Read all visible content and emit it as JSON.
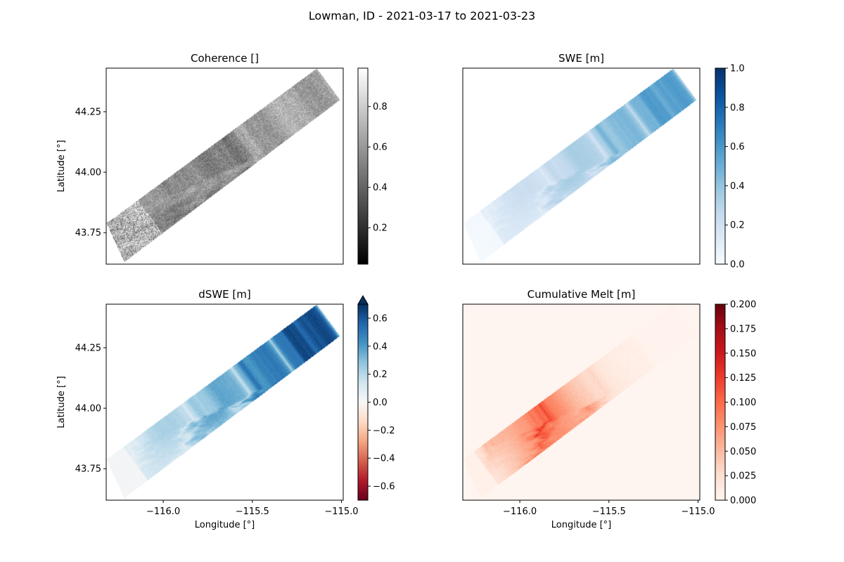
{
  "figure": {
    "suptitle": "Lowman, ID - 2021-03-17 to 2021-03-23"
  },
  "chart_data": [
    {
      "type": "heatmap",
      "title": "Coherence []",
      "xlabel": "",
      "ylabel": "Latitude [°]",
      "xlim": [
        -116.32,
        -114.99
      ],
      "ylim": [
        43.62,
        44.43
      ],
      "xticks": [],
      "xtick_labels": [],
      "yticks": [
        43.75,
        44.0,
        44.25
      ],
      "ytick_labels": [
        "43.75",
        "44.00",
        "44.25"
      ],
      "colormap": "gray",
      "colorbar": {
        "vmin": 0.02,
        "vmax": 0.99,
        "ticks": [
          0.2,
          0.4,
          0.6,
          0.8
        ],
        "tick_labels": [
          "0.2",
          "0.4",
          "0.6",
          "0.8"
        ],
        "extend": "neither"
      },
      "swath": {
        "corners_lonlat": [
          [
            -116.22,
            43.63
          ],
          [
            -116.32,
            43.79
          ],
          [
            -115.14,
            44.43
          ],
          [
            -115.01,
            44.3
          ]
        ]
      },
      "fill_outside_swath": null,
      "grid": false
    },
    {
      "type": "heatmap",
      "title": "SWE [m]",
      "xlabel": "",
      "ylabel": "",
      "xlim": [
        -116.32,
        -114.99
      ],
      "ylim": [
        43.62,
        44.43
      ],
      "xticks": [],
      "xtick_labels": [],
      "yticks": [],
      "ytick_labels": [],
      "colormap": "Blues",
      "colorbar": {
        "vmin": 0.0,
        "vmax": 1.0,
        "ticks": [
          0.0,
          0.2,
          0.4,
          0.6,
          0.8,
          1.0
        ],
        "tick_labels": [
          "0.0",
          "0.2",
          "0.4",
          "0.6",
          "0.8",
          "1.0"
        ],
        "extend": "neither"
      },
      "swath": {
        "corners_lonlat": [
          [
            -116.22,
            43.63
          ],
          [
            -116.32,
            43.79
          ],
          [
            -115.14,
            44.43
          ],
          [
            -115.01,
            44.3
          ]
        ]
      },
      "fill_outside_swath": null,
      "grid": false
    },
    {
      "type": "heatmap",
      "title": "dSWE [m]",
      "xlabel": "Longitude [°]",
      "ylabel": "Latitude [°]",
      "xlim": [
        -116.32,
        -114.99
      ],
      "ylim": [
        43.62,
        44.43
      ],
      "xticks": [
        -116.0,
        -115.5,
        -115.0
      ],
      "xtick_labels": [
        "−116.0",
        "−115.5",
        "−115.0"
      ],
      "yticks": [
        43.75,
        44.0,
        44.25
      ],
      "ytick_labels": [
        "43.75",
        "44.00",
        "44.25"
      ],
      "colormap": "RdBu",
      "colorbar": {
        "vmin": -0.7,
        "vmax": 0.7,
        "ticks": [
          -0.6,
          -0.4,
          -0.2,
          0.0,
          0.2,
          0.4,
          0.6
        ],
        "tick_labels": [
          "−0.6",
          "−0.4",
          "−0.2",
          "0.0",
          "0.2",
          "0.4",
          "0.6"
        ],
        "extend": "max"
      },
      "swath": {
        "corners_lonlat": [
          [
            -116.22,
            43.63
          ],
          [
            -116.32,
            43.79
          ],
          [
            -115.14,
            44.43
          ],
          [
            -115.01,
            44.3
          ]
        ]
      },
      "fill_outside_swath": null,
      "grid": false
    },
    {
      "type": "heatmap",
      "title": "Cumulative Melt [m]",
      "xlabel": "Longitude [°]",
      "ylabel": "",
      "xlim": [
        -116.32,
        -114.99
      ],
      "ylim": [
        43.62,
        44.43
      ],
      "xticks": [
        -116.0,
        -115.5,
        -115.0
      ],
      "xtick_labels": [
        "−116.0",
        "−115.5",
        "−115.0"
      ],
      "yticks": [],
      "ytick_labels": [],
      "colormap": "Reds",
      "colorbar": {
        "vmin": 0.0,
        "vmax": 0.2,
        "ticks": [
          0.0,
          0.025,
          0.05,
          0.075,
          0.1,
          0.125,
          0.15,
          0.175,
          0.2
        ],
        "tick_labels": [
          "0.000",
          "0.025",
          "0.050",
          "0.075",
          "0.100",
          "0.125",
          "0.150",
          "0.175",
          "0.200"
        ],
        "extend": "neither"
      },
      "swath": {
        "corners_lonlat": [
          [
            -116.22,
            43.63
          ],
          [
            -116.32,
            43.79
          ],
          [
            -115.14,
            44.43
          ],
          [
            -115.01,
            44.3
          ]
        ]
      },
      "fill_outside_swath": 0.0,
      "grid": false
    }
  ]
}
